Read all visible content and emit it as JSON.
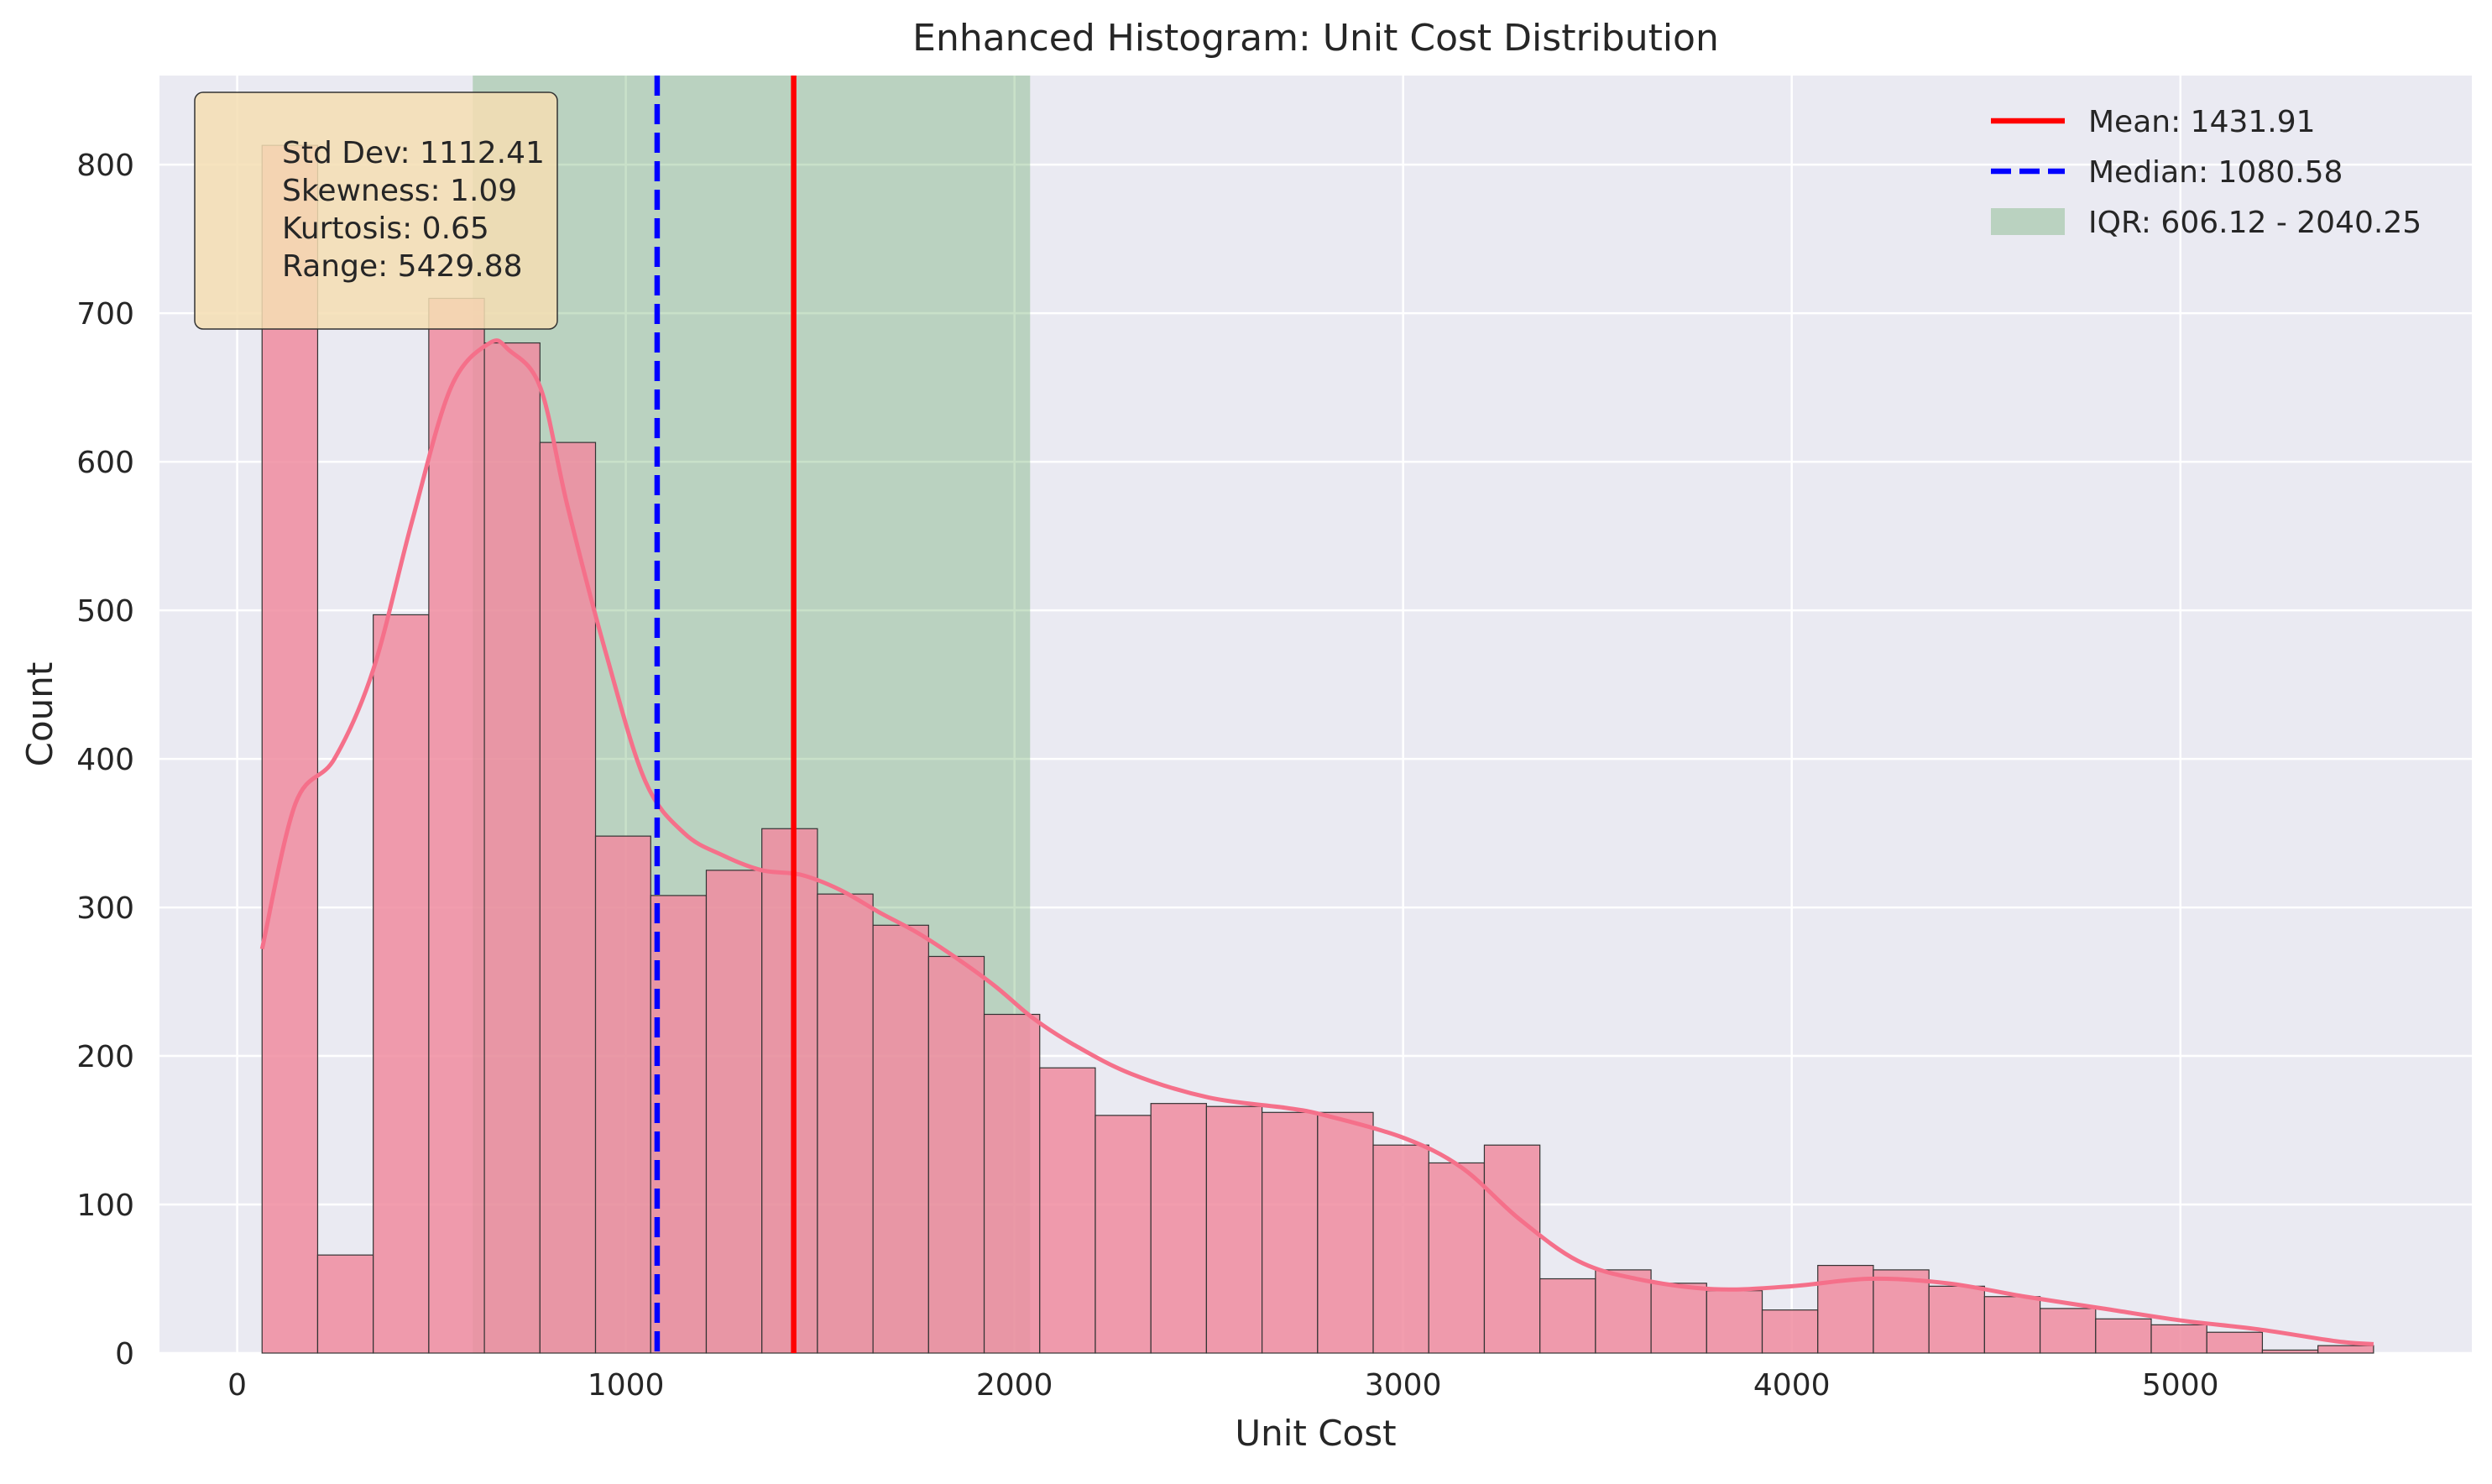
{
  "chart_data": {
    "type": "bar",
    "title": "Enhanced Histogram: Unit Cost Distribution",
    "xlabel": "Unit Cost",
    "ylabel": "Count",
    "xlim": [
      -200,
      5750
    ],
    "ylim": [
      0,
      860
    ],
    "x_ticks": [
      0,
      1000,
      2000,
      3000,
      4000,
      5000
    ],
    "y_ticks": [
      0,
      100,
      200,
      300,
      400,
      500,
      600,
      700,
      800
    ],
    "grid": true,
    "bin_edges": [
      64,
      207,
      350,
      493,
      636,
      779,
      922,
      1064,
      1207,
      1350,
      1493,
      1636,
      1779,
      1922,
      2065,
      2208,
      2351,
      2494,
      2637,
      2780,
      2923,
      3066,
      3209,
      3352,
      3495,
      3638,
      3781,
      3924,
      4067,
      4210,
      4353,
      4496,
      4639,
      4782,
      4925,
      5068,
      5211,
      5354,
      5497
    ],
    "counts": [
      813,
      66,
      497,
      710,
      680,
      613,
      348,
      308,
      325,
      353,
      309,
      288,
      267,
      228,
      192,
      160,
      168,
      166,
      162,
      162,
      140,
      128,
      140,
      50,
      56,
      47,
      42,
      29,
      59,
      56,
      45,
      38,
      30,
      23,
      19,
      14,
      2,
      5
    ],
    "kde": {
      "x": [
        64,
        150,
        250,
        350,
        450,
        550,
        650,
        700,
        780,
        850,
        950,
        1050,
        1150,
        1250,
        1350,
        1450,
        1550,
        1650,
        1750,
        1850,
        1950,
        2050,
        2150,
        2300,
        2500,
        2700,
        2800,
        3000,
        3150,
        3300,
        3450,
        3600,
        3800,
        4000,
        4200,
        4400,
        4600,
        4800,
        5000,
        5200,
        5400,
        5497
      ],
      "y": [
        272,
        370,
        400,
        460,
        560,
        650,
        680,
        675,
        650,
        570,
        470,
        385,
        350,
        335,
        325,
        322,
        312,
        297,
        283,
        266,
        247,
        225,
        208,
        188,
        172,
        165,
        160,
        145,
        125,
        90,
        62,
        50,
        43,
        45,
        50,
        47,
        38,
        30,
        22,
        16,
        8,
        6
      ]
    },
    "mean": {
      "value": 1431.91,
      "label": "Mean: 1431.91",
      "color": "#ff0000"
    },
    "median": {
      "value": 1080.58,
      "label": "Median: 1080.58",
      "color": "#0000ff"
    },
    "iqr": {
      "low": 606.12,
      "high": 2040.25,
      "label": "IQR: 606.12 - 2040.25",
      "color": "#4c9a4c"
    },
    "bar_color": "#f08ca0",
    "kde_color": "#f5708a",
    "stats_box": [
      "Std Dev: 1112.41",
      "Skewness: 1.09",
      "Kurtosis: 0.65",
      "Range: 5429.88"
    ],
    "legend_position": "top-right"
  }
}
